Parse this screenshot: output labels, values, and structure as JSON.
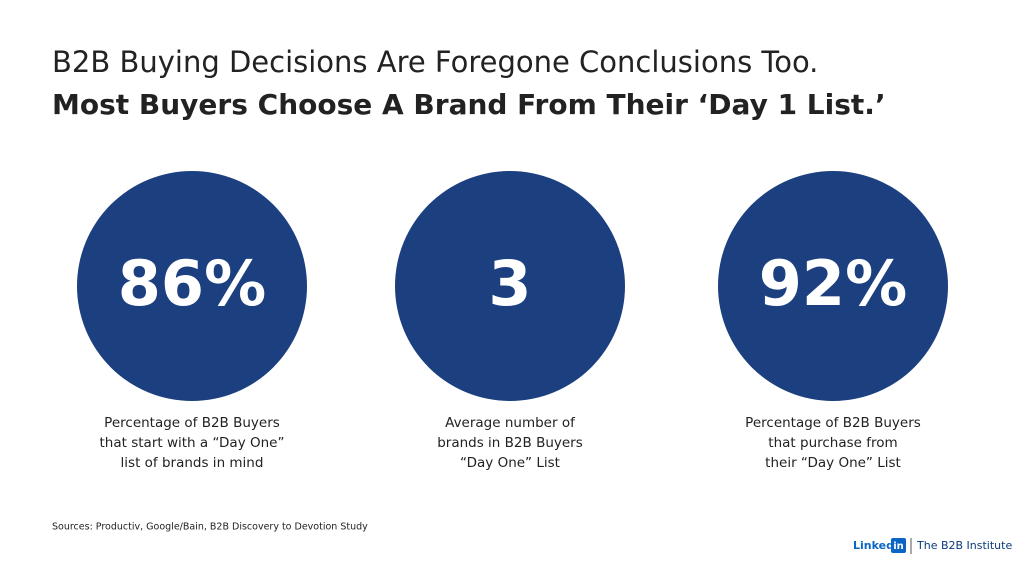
{
  "header": {
    "title_line1": "B2B Buying Decisions Are Foregone Conclusions Too.",
    "title_line2": "Most Buyers Choose A Brand From Their ‘Day 1 List.’"
  },
  "stats": [
    {
      "value": "86%",
      "caption": [
        "Percentage of B2B Buyers",
        "that start with a “Day One”",
        "list of brands in mind"
      ]
    },
    {
      "value": "3",
      "caption": [
        "Average number of",
        "brands in B2B Buyers",
        "“Day One” List"
      ]
    },
    {
      "value": "92%",
      "caption": [
        "Percentage of B2B Buyers",
        "that purchase from",
        "their “Day One” List"
      ]
    }
  ],
  "footer": {
    "sources": "Sources: Productiv, Google/Bain, B2B Discovery to Devotion Study",
    "logo_word": "Linked",
    "logo_box": "in",
    "org": "The B2B Institute"
  }
}
